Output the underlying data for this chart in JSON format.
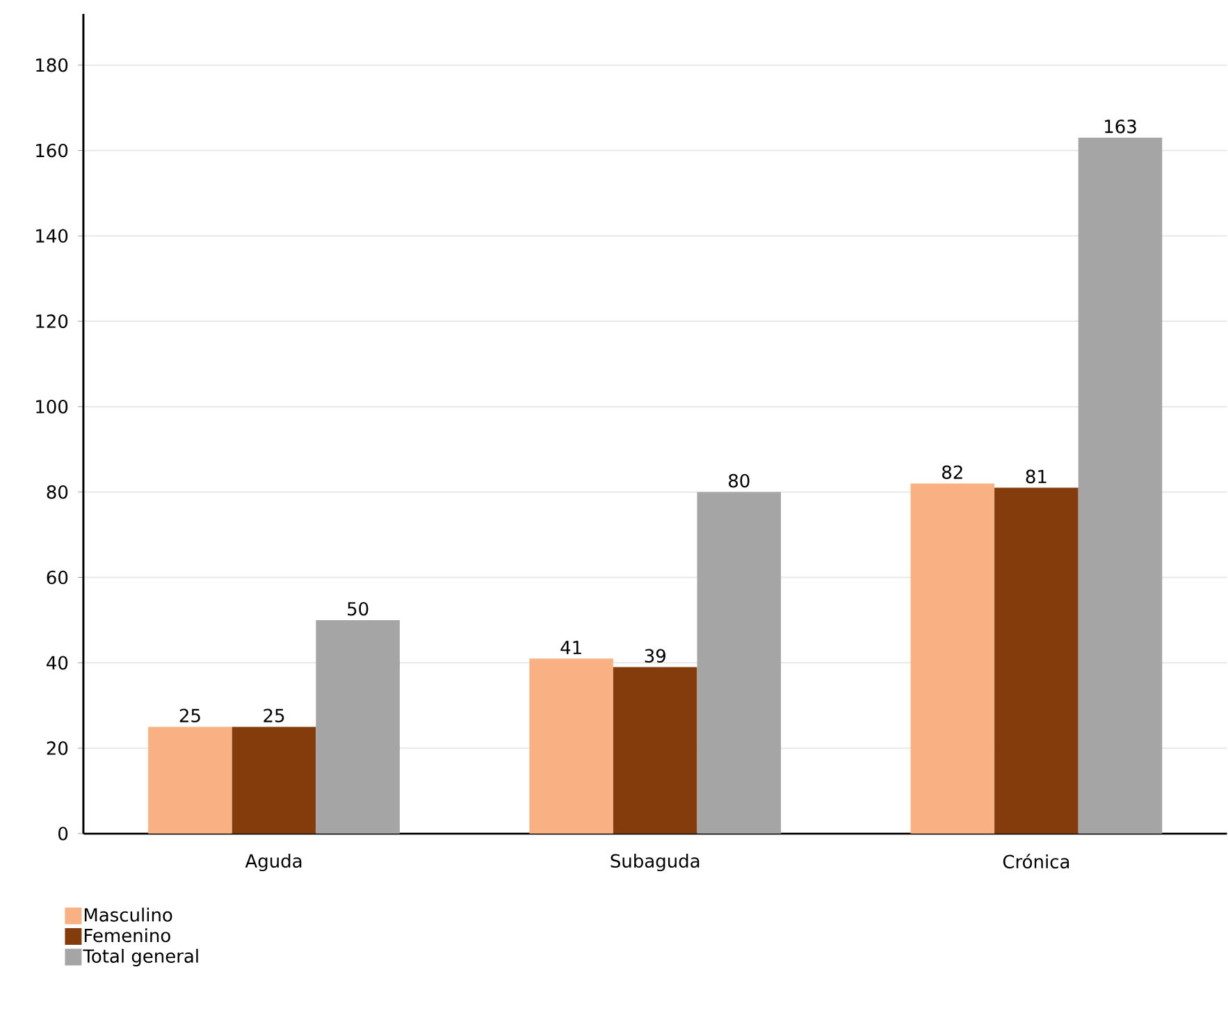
{
  "chart_data": {
    "type": "bar",
    "categories": [
      "Aguda",
      "Subaguda",
      "Crónica"
    ],
    "series": [
      {
        "name": "Masculino",
        "color": "#f9b183",
        "values": [
          25,
          41,
          82
        ]
      },
      {
        "name": "Femenino",
        "color": "#843c0c",
        "values": [
          25,
          39,
          81
        ]
      },
      {
        "name": "Total general",
        "color": "#a5a5a5",
        "values": [
          50,
          80,
          163
        ]
      }
    ],
    "ylim": [
      0,
      192
    ],
    "yticks": [
      0,
      20,
      40,
      60,
      80,
      100,
      120,
      140,
      160,
      180
    ],
    "grid": "y",
    "legend": "bottom left",
    "data_labels": true
  }
}
